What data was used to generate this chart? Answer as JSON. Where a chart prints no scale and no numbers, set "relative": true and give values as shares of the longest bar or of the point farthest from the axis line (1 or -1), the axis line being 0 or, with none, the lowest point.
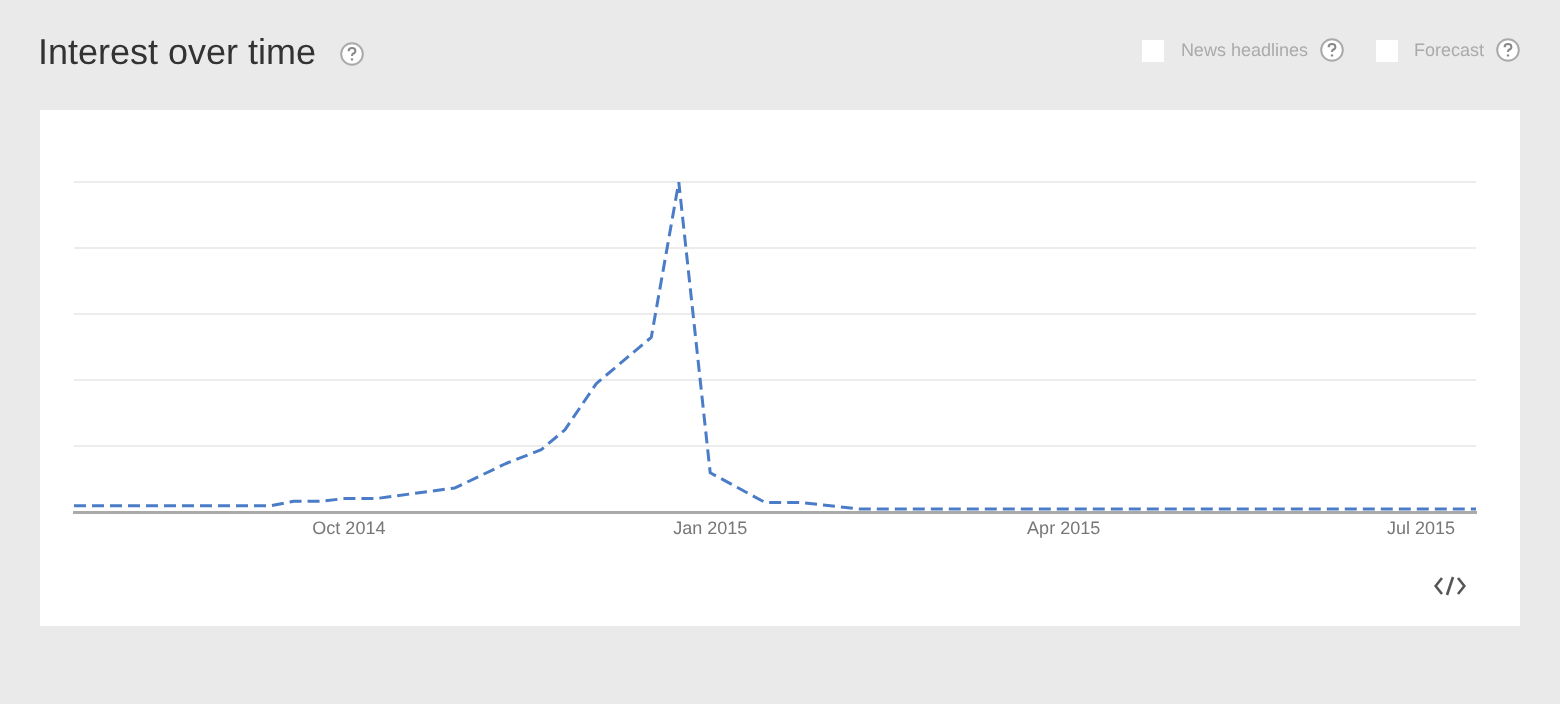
{
  "chart_data": {
    "type": "line",
    "title": "Interest over time",
    "relative": true,
    "x": [
      "2014-07-23",
      "2014-09-11",
      "2014-09-17",
      "2014-09-24",
      "2014-09-30",
      "2014-10-08",
      "2014-10-28",
      "2014-11-10",
      "2014-11-19",
      "2014-11-25",
      "2014-12-03",
      "2014-12-17",
      "2014-12-24",
      "2015-01-01",
      "2015-01-15",
      "2015-01-24",
      "2015-02-08",
      "2015-07-15"
    ],
    "series": [
      {
        "color": "#4a7cc7",
        "values": [
          0.02,
          0.02,
          0.034,
          0.034,
          0.042,
          0.042,
          0.074,
          0.148,
          0.19,
          0.25,
          0.39,
          0.53,
          1,
          0.12,
          0.03,
          0.03,
          0.01,
          0.01
        ]
      }
    ],
    "xlim": [
      "2014-07-23",
      "2015-07-15"
    ],
    "xticks": [
      {
        "value": "2014-10-01",
        "label": "Oct 2014"
      },
      {
        "value": "2015-01-01",
        "label": "Jan 2015"
      },
      {
        "value": "2015-04-01",
        "label": "Apr 2015"
      },
      {
        "value": "2015-07-01",
        "label": "Jul 2015"
      }
    ],
    "grid": "y",
    "line_style": "dashed",
    "marker": "none",
    "legend": false,
    "annotations": [
      "News headlines",
      "Forecast"
    ]
  }
}
